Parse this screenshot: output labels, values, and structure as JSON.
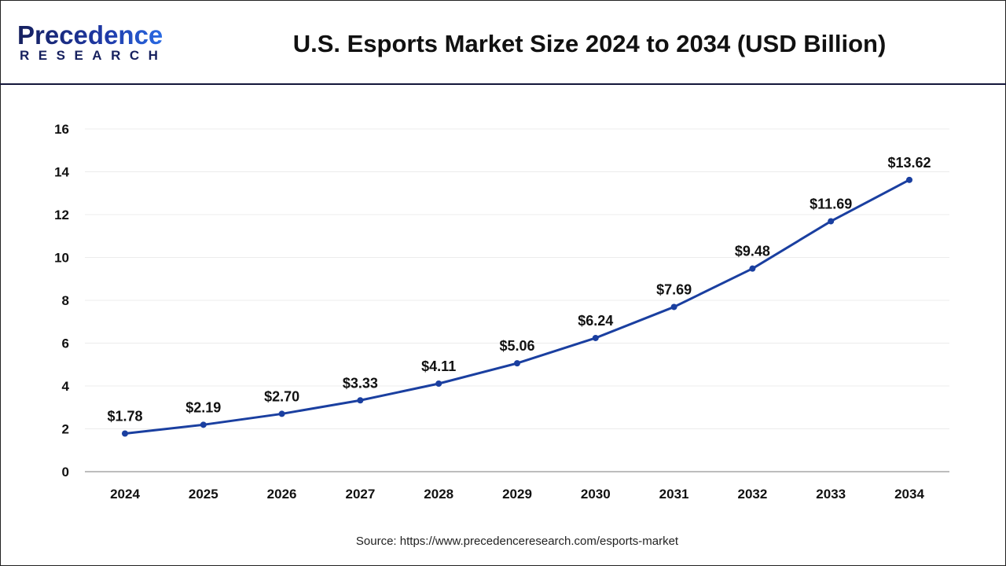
{
  "header": {
    "logo_top": "Precedence",
    "logo_bottom": "RESEARCH",
    "title": "U.S. Esports Market Size 2024 to 2034 (USD Billion)"
  },
  "source": "Source: https://www.precedenceresearch.com/esports-market",
  "chart_data": {
    "type": "line",
    "title": "U.S. Esports Market Size 2024 to 2034 (USD Billion)",
    "categories": [
      "2024",
      "2025",
      "2026",
      "2027",
      "2028",
      "2029",
      "2030",
      "2031",
      "2032",
      "2033",
      "2034"
    ],
    "values": [
      1.78,
      2.19,
      2.7,
      3.33,
      4.11,
      5.06,
      6.24,
      7.69,
      9.48,
      11.69,
      13.62
    ],
    "data_labels": [
      "$1.78",
      "$2.19",
      "$2.70",
      "$3.33",
      "$4.11",
      "$5.06",
      "$6.24",
      "$7.69",
      "$9.48",
      "$11.69",
      "$13.62"
    ],
    "ylim": [
      0,
      16
    ],
    "yticks": [
      0,
      2,
      4,
      6,
      8,
      10,
      12,
      14,
      16
    ],
    "grid": true,
    "line_color": "#1a3fa0"
  }
}
